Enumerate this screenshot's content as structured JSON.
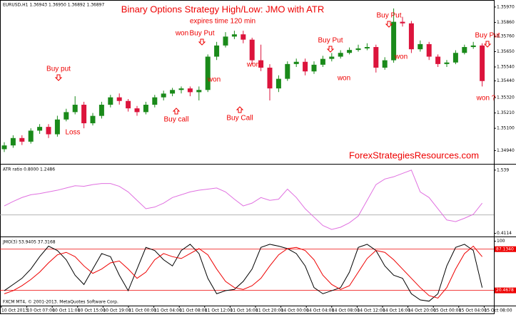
{
  "header": "EURUSD,H1  1.36943 1.36950 1.36892 1.36897",
  "title": "Binary Options Strategy High/Low: JMO with ATR",
  "subtitle": "expires time 120 min",
  "watermark": "ForexStrategiesResources.com",
  "footer": "FXCM MT4, © 2001-2013. MetaQuotes Software Corp.",
  "annotations": [
    "Buy put",
    "Loss",
    "won",
    "Buy Put",
    "won",
    "won",
    "Buy Call",
    "Buy call",
    "Buy Put",
    "won",
    "Buy Put",
    "won",
    "Buy Put",
    "won ?"
  ],
  "x_labels": [
    "10 Oct 2013",
    "10 Oct 07:00",
    "10 Oct 11:00",
    "10 Oct 15:00",
    "10 Oct 19:00",
    "11 Oct 00:00",
    "11 Oct 04:00",
    "11 Oct 08:00",
    "11 Oct 12:00",
    "11 Oct 16:00",
    "11 Oct 20:00",
    "14 Oct 00:00",
    "14 Oct 04:00",
    "14 Oct 08:00",
    "14 Oct 12:00",
    "14 Oct 16:00",
    "14 Oct 20:00",
    "15 Oct 00:00",
    "15 Oct 04:00",
    "15 Oct 08:00"
  ],
  "chart_data": [
    {
      "type": "candlestick",
      "up_color": "#1a8a1a",
      "down_color": "#dc143c",
      "ylim": [
        1.3485,
        1.36
      ],
      "yticks": [
        {
          "value": 1.3597,
          "label": "1.35970"
        },
        {
          "value": 1.3586,
          "label": "1.35860"
        },
        {
          "value": 1.3576,
          "label": "1.35760"
        },
        {
          "value": 1.3565,
          "label": "1.35650"
        },
        {
          "value": 1.3554,
          "label": "1.35540"
        },
        {
          "value": 1.3544,
          "label": "1.35440"
        },
        {
          "value": 1.3532,
          "label": "1.35320"
        },
        {
          "value": 1.3521,
          "label": "1.35210"
        },
        {
          "value": 1.351,
          "label": "1.35100"
        },
        {
          "value": 1.3494,
          "label": "1.34940"
        }
      ],
      "open": [
        1.3495,
        1.34977,
        1.3503,
        1.35004,
        1.35083,
        1.3511,
        1.35057,
        1.35163,
        1.35216,
        1.35269,
        1.35136,
        1.35189,
        1.35269,
        1.35322,
        1.35296,
        1.35243,
        1.35216,
        1.35269,
        1.35322,
        1.35349,
        1.35375,
        1.35386,
        1.35359,
        1.35375,
        1.35614,
        1.35694,
        1.35758,
        1.35774,
        1.35736,
        1.35588,
        1.35535,
        1.35386,
        1.35455,
        1.35561,
        1.35577,
        1.35508,
        1.35556,
        1.35598,
        1.35614,
        1.35641,
        1.35662,
        1.35673,
        1.35683,
        1.35535,
        1.35588,
        1.35864,
        1.35853,
        1.35667,
        1.35704,
        1.35614,
        1.35561,
        1.35572,
        1.35641,
        1.35683,
        1.35694
      ],
      "high": [
        1.35,
        1.3505,
        1.3505,
        1.351,
        1.3513,
        1.3513,
        1.3519,
        1.3524,
        1.3533,
        1.3529,
        1.3521,
        1.3529,
        1.3534,
        1.3535,
        1.3531,
        1.3526,
        1.3529,
        1.3534,
        1.3537,
        1.3539,
        1.354,
        1.354,
        1.354,
        1.3563,
        1.3572,
        1.3579,
        1.358,
        1.358,
        1.3575,
        1.357,
        1.3556,
        1.3548,
        1.3558,
        1.356,
        1.356,
        1.3558,
        1.3562,
        1.3564,
        1.3566,
        1.3568,
        1.357,
        1.3571,
        1.357,
        1.3561,
        1.3596,
        1.359,
        1.3587,
        1.3573,
        1.3572,
        1.3563,
        1.3559,
        1.3566,
        1.357,
        1.3572,
        1.3571
      ],
      "low": [
        1.3493,
        1.3496,
        1.3498,
        1.3499,
        1.3506,
        1.3503,
        1.3504,
        1.3515,
        1.352,
        1.351,
        1.3512,
        1.3517,
        1.3525,
        1.3527,
        1.3522,
        1.3519,
        1.352,
        1.3525,
        1.353,
        1.3533,
        1.3535,
        1.3533,
        1.353,
        1.3536,
        1.3559,
        1.3568,
        1.3574,
        1.3571,
        1.3556,
        1.3551,
        1.353,
        1.3536,
        1.3544,
        1.3554,
        1.3548,
        1.3549,
        1.3554,
        1.3558,
        1.356,
        1.3563,
        1.3565,
        1.3566,
        1.355,
        1.3552,
        1.3557,
        1.3583,
        1.3564,
        1.3565,
        1.3559,
        1.3554,
        1.3554,
        1.3556,
        1.3563,
        1.3567,
        1.354
      ],
      "close": [
        1.34977,
        1.3503,
        1.35004,
        1.35083,
        1.3511,
        1.35057,
        1.35163,
        1.35216,
        1.35269,
        1.35136,
        1.35189,
        1.35269,
        1.35322,
        1.35296,
        1.35243,
        1.35216,
        1.35269,
        1.35322,
        1.35349,
        1.35375,
        1.35386,
        1.35359,
        1.35375,
        1.35614,
        1.35694,
        1.35758,
        1.35774,
        1.35736,
        1.35588,
        1.35535,
        1.35386,
        1.35455,
        1.35561,
        1.35577,
        1.35508,
        1.35556,
        1.35598,
        1.35614,
        1.35641,
        1.35662,
        1.35673,
        1.35683,
        1.35535,
        1.35588,
        1.35864,
        1.35853,
        1.35667,
        1.35704,
        1.35614,
        1.35561,
        1.35572,
        1.35641,
        1.35683,
        1.35694,
        1.35439
      ]
    },
    {
      "type": "line",
      "label": "ATR ratio 0.8000 1.2486",
      "ylim": [
        0.38,
        1.6
      ],
      "yticks": [
        1.539,
        0.4114
      ],
      "levels": [
        0.74
      ],
      "level_color": "#aaa",
      "series": [
        {
          "color": "#e070e0",
          "values": [
            0.9,
            0.98,
            1.05,
            1.1,
            1.12,
            1.15,
            1.18,
            1.22,
            1.26,
            1.25,
            1.28,
            1.3,
            1.3,
            1.25,
            1.15,
            1.0,
            0.85,
            0.88,
            0.95,
            1.05,
            1.1,
            1.15,
            1.18,
            1.2,
            1.22,
            1.15,
            1.02,
            0.9,
            0.95,
            1.05,
            1.0,
            1.02,
            1.2,
            1.05,
            0.85,
            0.7,
            0.55,
            0.48,
            0.52,
            0.6,
            0.72,
            1.0,
            1.28,
            1.38,
            1.42,
            1.48,
            1.54,
            1.15,
            1.05,
            0.85,
            0.65,
            0.62,
            0.68,
            0.75,
            0.95
          ]
        }
      ]
    },
    {
      "type": "line",
      "label": "JMO(3) 53.9405 37.3168",
      "ylim": [
        -3,
        103
      ],
      "yticks": [
        100
      ],
      "level_color": "#e00",
      "levels": [
        {
          "value": 87.134,
          "label": "87.1340"
        },
        {
          "value": 20.4678,
          "label": "20.4678"
        }
      ],
      "series": [
        {
          "color": "#000",
          "values": [
            20,
            30,
            40,
            55,
            75,
            92,
            85,
            70,
            45,
            30,
            55,
            80,
            75,
            45,
            20,
            55,
            90,
            85,
            70,
            60,
            85,
            95,
            80,
            40,
            15,
            20,
            22,
            35,
            55,
            90,
            95,
            92,
            88,
            80,
            60,
            25,
            15,
            20,
            25,
            50,
            90,
            95,
            85,
            60,
            45,
            40,
            15,
            5,
            3,
            15,
            60,
            90,
            95,
            85,
            25
          ]
        },
        {
          "color": "#e00",
          "values": [
            15,
            20,
            28,
            38,
            50,
            65,
            78,
            82,
            75,
            60,
            48,
            55,
            65,
            68,
            55,
            40,
            50,
            70,
            80,
            75,
            72,
            80,
            88,
            78,
            55,
            35,
            25,
            22,
            28,
            40,
            60,
            78,
            88,
            90,
            85,
            70,
            45,
            30,
            22,
            28,
            50,
            72,
            85,
            82,
            70,
            55,
            40,
            25,
            12,
            8,
            25,
            55,
            80,
            92,
            75
          ]
        }
      ]
    }
  ]
}
